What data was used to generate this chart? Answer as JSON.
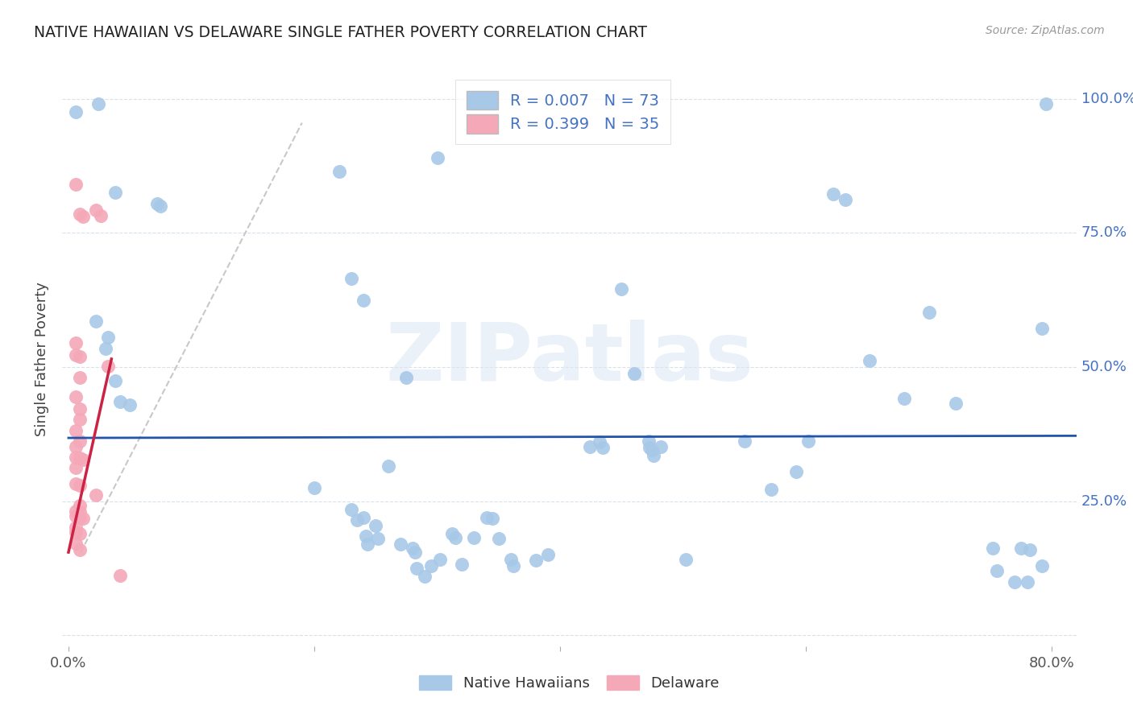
{
  "title": "NATIVE HAWAIIAN VS DELAWARE SINGLE FATHER POVERTY CORRELATION CHART",
  "source": "Source: ZipAtlas.com",
  "ylabel": "Single Father Poverty",
  "watermark": "ZIPatlas",
  "legend_blue_r": "R = 0.007",
  "legend_blue_n": "N = 73",
  "legend_pink_r": "R = 0.399",
  "legend_pink_n": "N = 35",
  "xlim": [
    -0.005,
    0.82
  ],
  "ylim": [
    -0.02,
    1.05
  ],
  "blue_color": "#a8c8e8",
  "pink_color": "#f4a8b8",
  "trend_blue_color": "#2255aa",
  "trend_pink_color": "#cc2244",
  "trend_pink_dash_color": "#c8c8c8",
  "grid_color": "#d8e0ec",
  "right_axis_color": "#4472c4",
  "background_color": "#ffffff",
  "blue_points": [
    [
      0.006,
      0.975
    ],
    [
      0.024,
      0.99
    ],
    [
      0.038,
      0.825
    ],
    [
      0.072,
      0.805
    ],
    [
      0.075,
      0.8
    ],
    [
      0.022,
      0.585
    ],
    [
      0.032,
      0.555
    ],
    [
      0.03,
      0.535
    ],
    [
      0.038,
      0.475
    ],
    [
      0.042,
      0.435
    ],
    [
      0.05,
      0.43
    ],
    [
      0.22,
      0.865
    ],
    [
      0.23,
      0.665
    ],
    [
      0.24,
      0.625
    ],
    [
      0.275,
      0.48
    ],
    [
      0.3,
      0.89
    ],
    [
      0.26,
      0.315
    ],
    [
      0.2,
      0.275
    ],
    [
      0.23,
      0.235
    ],
    [
      0.24,
      0.22
    ],
    [
      0.235,
      0.215
    ],
    [
      0.25,
      0.205
    ],
    [
      0.242,
      0.185
    ],
    [
      0.252,
      0.18
    ],
    [
      0.243,
      0.17
    ],
    [
      0.27,
      0.17
    ],
    [
      0.28,
      0.162
    ],
    [
      0.282,
      0.155
    ],
    [
      0.283,
      0.125
    ],
    [
      0.29,
      0.11
    ],
    [
      0.295,
      0.13
    ],
    [
      0.302,
      0.142
    ],
    [
      0.312,
      0.19
    ],
    [
      0.315,
      0.182
    ],
    [
      0.32,
      0.132
    ],
    [
      0.33,
      0.182
    ],
    [
      0.34,
      0.22
    ],
    [
      0.345,
      0.218
    ],
    [
      0.35,
      0.18
    ],
    [
      0.36,
      0.142
    ],
    [
      0.362,
      0.13
    ],
    [
      0.38,
      0.14
    ],
    [
      0.39,
      0.15
    ],
    [
      0.424,
      0.352
    ],
    [
      0.432,
      0.36
    ],
    [
      0.435,
      0.35
    ],
    [
      0.45,
      0.645
    ],
    [
      0.46,
      0.488
    ],
    [
      0.472,
      0.362
    ],
    [
      0.473,
      0.35
    ],
    [
      0.475,
      0.345
    ],
    [
      0.476,
      0.335
    ],
    [
      0.482,
      0.352
    ],
    [
      0.502,
      0.142
    ],
    [
      0.55,
      0.362
    ],
    [
      0.572,
      0.272
    ],
    [
      0.592,
      0.305
    ],
    [
      0.602,
      0.362
    ],
    [
      0.622,
      0.822
    ],
    [
      0.632,
      0.812
    ],
    [
      0.652,
      0.512
    ],
    [
      0.68,
      0.442
    ],
    [
      0.7,
      0.602
    ],
    [
      0.722,
      0.432
    ],
    [
      0.752,
      0.162
    ],
    [
      0.755,
      0.12
    ],
    [
      0.77,
      0.1
    ],
    [
      0.78,
      0.1
    ],
    [
      0.775,
      0.162
    ],
    [
      0.782,
      0.16
    ],
    [
      0.792,
      0.13
    ],
    [
      0.795,
      0.99
    ],
    [
      0.792,
      0.572
    ]
  ],
  "pink_points": [
    [
      0.006,
      0.84
    ],
    [
      0.009,
      0.785
    ],
    [
      0.012,
      0.78
    ],
    [
      0.006,
      0.545
    ],
    [
      0.006,
      0.522
    ],
    [
      0.009,
      0.52
    ],
    [
      0.009,
      0.48
    ],
    [
      0.006,
      0.445
    ],
    [
      0.009,
      0.422
    ],
    [
      0.009,
      0.402
    ],
    [
      0.006,
      0.382
    ],
    [
      0.009,
      0.362
    ],
    [
      0.006,
      0.352
    ],
    [
      0.006,
      0.332
    ],
    [
      0.009,
      0.33
    ],
    [
      0.012,
      0.328
    ],
    [
      0.006,
      0.312
    ],
    [
      0.006,
      0.282
    ],
    [
      0.009,
      0.28
    ],
    [
      0.009,
      0.242
    ],
    [
      0.006,
      0.232
    ],
    [
      0.009,
      0.23
    ],
    [
      0.006,
      0.222
    ],
    [
      0.009,
      0.22
    ],
    [
      0.012,
      0.218
    ],
    [
      0.006,
      0.202
    ],
    [
      0.006,
      0.192
    ],
    [
      0.009,
      0.19
    ],
    [
      0.006,
      0.172
    ],
    [
      0.009,
      0.16
    ],
    [
      0.022,
      0.262
    ],
    [
      0.022,
      0.792
    ],
    [
      0.026,
      0.782
    ],
    [
      0.032,
      0.502
    ],
    [
      0.042,
      0.112
    ]
  ],
  "blue_trend_x": [
    0.0,
    0.82
  ],
  "blue_trend_y": [
    0.368,
    0.372
  ],
  "pink_trend_x": [
    0.0,
    0.035
  ],
  "pink_trend_y": [
    0.155,
    0.515
  ],
  "pink_dash_trend_x": [
    0.01,
    0.19
  ],
  "pink_dash_trend_y": [
    0.155,
    0.955
  ]
}
